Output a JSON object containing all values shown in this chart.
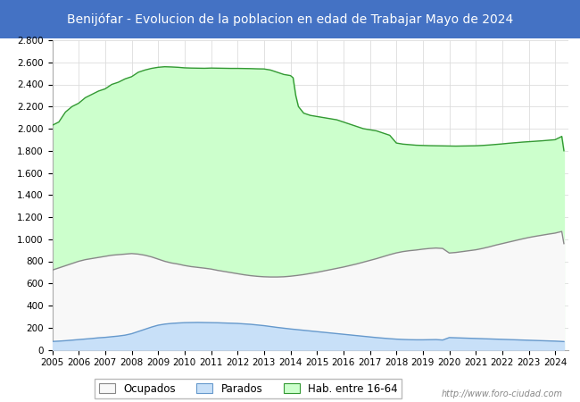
{
  "title": "Benijófar - Evolucion de la poblacion en edad de Trabajar Mayo de 2024",
  "title_bg_color": "#4472C4",
  "title_text_color": "white",
  "ylim": [
    0,
    2800
  ],
  "yticks": [
    0,
    200,
    400,
    600,
    800,
    1000,
    1200,
    1400,
    1600,
    1800,
    2000,
    2200,
    2400,
    2600,
    2800
  ],
  "hab_data": [
    [
      2005.0,
      2030
    ],
    [
      2005.25,
      2060
    ],
    [
      2005.5,
      2150
    ],
    [
      2005.75,
      2200
    ],
    [
      2006.0,
      2230
    ],
    [
      2006.25,
      2280
    ],
    [
      2006.5,
      2310
    ],
    [
      2006.75,
      2340
    ],
    [
      2007.0,
      2360
    ],
    [
      2007.25,
      2400
    ],
    [
      2007.5,
      2420
    ],
    [
      2007.75,
      2450
    ],
    [
      2008.0,
      2470
    ],
    [
      2008.25,
      2510
    ],
    [
      2008.5,
      2530
    ],
    [
      2008.75,
      2545
    ],
    [
      2009.0,
      2555
    ],
    [
      2009.25,
      2560
    ],
    [
      2009.5,
      2558
    ],
    [
      2009.75,
      2555
    ],
    [
      2010.0,
      2550
    ],
    [
      2010.25,
      2548
    ],
    [
      2010.5,
      2547
    ],
    [
      2010.75,
      2546
    ],
    [
      2011.0,
      2548
    ],
    [
      2011.25,
      2547
    ],
    [
      2011.5,
      2546
    ],
    [
      2011.75,
      2545
    ],
    [
      2012.0,
      2545
    ],
    [
      2012.25,
      2544
    ],
    [
      2012.5,
      2543
    ],
    [
      2012.75,
      2541
    ],
    [
      2013.0,
      2540
    ],
    [
      2013.25,
      2530
    ],
    [
      2013.5,
      2510
    ],
    [
      2013.75,
      2490
    ],
    [
      2014.0,
      2480
    ],
    [
      2014.1,
      2460
    ],
    [
      2014.2,
      2300
    ],
    [
      2014.3,
      2200
    ],
    [
      2014.5,
      2140
    ],
    [
      2014.75,
      2120
    ],
    [
      2015.0,
      2110
    ],
    [
      2015.25,
      2100
    ],
    [
      2015.5,
      2090
    ],
    [
      2015.75,
      2080
    ],
    [
      2016.0,
      2060
    ],
    [
      2016.25,
      2040
    ],
    [
      2016.5,
      2020
    ],
    [
      2016.75,
      2000
    ],
    [
      2017.0,
      1990
    ],
    [
      2017.25,
      1980
    ],
    [
      2017.5,
      1960
    ],
    [
      2017.75,
      1940
    ],
    [
      2018.0,
      1870
    ],
    [
      2018.25,
      1860
    ],
    [
      2018.5,
      1855
    ],
    [
      2018.75,
      1850
    ],
    [
      2019.0,
      1848
    ],
    [
      2019.25,
      1846
    ],
    [
      2019.5,
      1845
    ],
    [
      2019.75,
      1844
    ],
    [
      2020.0,
      1843
    ],
    [
      2020.25,
      1842
    ],
    [
      2020.5,
      1843
    ],
    [
      2020.75,
      1844
    ],
    [
      2021.0,
      1845
    ],
    [
      2021.25,
      1848
    ],
    [
      2021.5,
      1852
    ],
    [
      2021.75,
      1857
    ],
    [
      2022.0,
      1862
    ],
    [
      2022.25,
      1868
    ],
    [
      2022.5,
      1873
    ],
    [
      2022.75,
      1878
    ],
    [
      2023.0,
      1882
    ],
    [
      2023.25,
      1886
    ],
    [
      2023.5,
      1890
    ],
    [
      2023.75,
      1895
    ],
    [
      2024.0,
      1900
    ],
    [
      2024.08,
      1910
    ],
    [
      2024.17,
      1920
    ],
    [
      2024.25,
      1930
    ],
    [
      2024.33,
      1800
    ]
  ],
  "ocupados_data": [
    [
      2005.0,
      720
    ],
    [
      2005.25,
      740
    ],
    [
      2005.5,
      760
    ],
    [
      2005.75,
      780
    ],
    [
      2006.0,
      800
    ],
    [
      2006.25,
      815
    ],
    [
      2006.5,
      825
    ],
    [
      2006.75,
      835
    ],
    [
      2007.0,
      845
    ],
    [
      2007.25,
      855
    ],
    [
      2007.5,
      860
    ],
    [
      2007.75,
      865
    ],
    [
      2008.0,
      870
    ],
    [
      2008.25,
      865
    ],
    [
      2008.5,
      855
    ],
    [
      2008.75,
      840
    ],
    [
      2009.0,
      820
    ],
    [
      2009.25,
      800
    ],
    [
      2009.5,
      785
    ],
    [
      2009.75,
      775
    ],
    [
      2010.0,
      762
    ],
    [
      2010.25,
      752
    ],
    [
      2010.5,
      745
    ],
    [
      2010.75,
      738
    ],
    [
      2011.0,
      730
    ],
    [
      2011.25,
      718
    ],
    [
      2011.5,
      708
    ],
    [
      2011.75,
      698
    ],
    [
      2012.0,
      688
    ],
    [
      2012.25,
      678
    ],
    [
      2012.5,
      670
    ],
    [
      2012.75,
      664
    ],
    [
      2013.0,
      660
    ],
    [
      2013.25,
      658
    ],
    [
      2013.5,
      658
    ],
    [
      2013.75,
      660
    ],
    [
      2014.0,
      665
    ],
    [
      2014.25,
      672
    ],
    [
      2014.5,
      680
    ],
    [
      2014.75,
      690
    ],
    [
      2015.0,
      700
    ],
    [
      2015.25,
      712
    ],
    [
      2015.5,
      724
    ],
    [
      2015.75,
      736
    ],
    [
      2016.0,
      748
    ],
    [
      2016.25,
      762
    ],
    [
      2016.5,
      776
    ],
    [
      2016.75,
      792
    ],
    [
      2017.0,
      808
    ],
    [
      2017.25,
      824
    ],
    [
      2017.5,
      842
    ],
    [
      2017.75,
      860
    ],
    [
      2018.0,
      876
    ],
    [
      2018.25,
      888
    ],
    [
      2018.5,
      896
    ],
    [
      2018.75,
      902
    ],
    [
      2019.0,
      910
    ],
    [
      2019.25,
      916
    ],
    [
      2019.5,
      920
    ],
    [
      2019.75,
      916
    ],
    [
      2020.0,
      875
    ],
    [
      2020.25,
      880
    ],
    [
      2020.5,
      888
    ],
    [
      2020.75,
      896
    ],
    [
      2021.0,
      904
    ],
    [
      2021.25,
      916
    ],
    [
      2021.5,
      930
    ],
    [
      2021.75,
      946
    ],
    [
      2022.0,
      960
    ],
    [
      2022.25,
      974
    ],
    [
      2022.5,
      988
    ],
    [
      2022.75,
      1002
    ],
    [
      2023.0,
      1015
    ],
    [
      2023.25,
      1026
    ],
    [
      2023.5,
      1036
    ],
    [
      2023.75,
      1046
    ],
    [
      2024.0,
      1055
    ],
    [
      2024.08,
      1060
    ],
    [
      2024.17,
      1065
    ],
    [
      2024.25,
      1070
    ],
    [
      2024.33,
      960
    ]
  ],
  "parados_data": [
    [
      2005.0,
      75
    ],
    [
      2005.25,
      78
    ],
    [
      2005.5,
      82
    ],
    [
      2005.75,
      87
    ],
    [
      2006.0,
      92
    ],
    [
      2006.25,
      97
    ],
    [
      2006.5,
      102
    ],
    [
      2006.75,
      108
    ],
    [
      2007.0,
      112
    ],
    [
      2007.25,
      118
    ],
    [
      2007.5,
      124
    ],
    [
      2007.75,
      132
    ],
    [
      2008.0,
      145
    ],
    [
      2008.25,
      165
    ],
    [
      2008.5,
      185
    ],
    [
      2008.75,
      205
    ],
    [
      2009.0,
      222
    ],
    [
      2009.25,
      232
    ],
    [
      2009.5,
      238
    ],
    [
      2009.75,
      242
    ],
    [
      2010.0,
      245
    ],
    [
      2010.25,
      246
    ],
    [
      2010.5,
      247
    ],
    [
      2010.75,
      246
    ],
    [
      2011.0,
      245
    ],
    [
      2011.25,
      244
    ],
    [
      2011.5,
      242
    ],
    [
      2011.75,
      240
    ],
    [
      2012.0,
      238
    ],
    [
      2012.25,
      234
    ],
    [
      2012.5,
      230
    ],
    [
      2012.75,
      224
    ],
    [
      2013.0,
      218
    ],
    [
      2013.25,
      210
    ],
    [
      2013.5,
      202
    ],
    [
      2013.75,
      195
    ],
    [
      2014.0,
      188
    ],
    [
      2014.25,
      182
    ],
    [
      2014.5,
      176
    ],
    [
      2014.75,
      170
    ],
    [
      2015.0,
      164
    ],
    [
      2015.25,
      158
    ],
    [
      2015.5,
      152
    ],
    [
      2015.75,
      146
    ],
    [
      2016.0,
      140
    ],
    [
      2016.25,
      134
    ],
    [
      2016.5,
      128
    ],
    [
      2016.75,
      122
    ],
    [
      2017.0,
      116
    ],
    [
      2017.25,
      110
    ],
    [
      2017.5,
      105
    ],
    [
      2017.75,
      100
    ],
    [
      2018.0,
      96
    ],
    [
      2018.25,
      93
    ],
    [
      2018.5,
      91
    ],
    [
      2018.75,
      90
    ],
    [
      2019.0,
      90
    ],
    [
      2019.25,
      91
    ],
    [
      2019.5,
      92
    ],
    [
      2019.75,
      88
    ],
    [
      2020.0,
      110
    ],
    [
      2020.25,
      108
    ],
    [
      2020.5,
      106
    ],
    [
      2020.75,
      104
    ],
    [
      2021.0,
      102
    ],
    [
      2021.25,
      100
    ],
    [
      2021.5,
      98
    ],
    [
      2021.75,
      96
    ],
    [
      2022.0,
      94
    ],
    [
      2022.25,
      92
    ],
    [
      2022.5,
      90
    ],
    [
      2022.75,
      88
    ],
    [
      2023.0,
      86
    ],
    [
      2023.25,
      84
    ],
    [
      2023.5,
      82
    ],
    [
      2023.75,
      80
    ],
    [
      2024.0,
      78
    ],
    [
      2024.08,
      77
    ],
    [
      2024.17,
      76
    ],
    [
      2024.25,
      75
    ],
    [
      2024.33,
      74
    ]
  ],
  "color_hab": "#ccffcc",
  "color_hab_line": "#339933",
  "color_ocupados": "#f8f8f8",
  "color_ocupados_line": "#888888",
  "color_parados": "#c8e0f8",
  "color_parados_line": "#6699cc",
  "watermark": "http://www.foro-ciudad.com",
  "legend_labels": [
    "Ocupados",
    "Parados",
    "Hab. entre 16-64"
  ],
  "legend_fill": [
    "#f8f8f8",
    "#c8e0f8",
    "#ccffcc"
  ],
  "legend_edge": [
    "#888888",
    "#6699cc",
    "#339933"
  ],
  "bg_color": "#ffffff",
  "plot_bg_color": "#ffffff",
  "grid_color": "#dddddd"
}
